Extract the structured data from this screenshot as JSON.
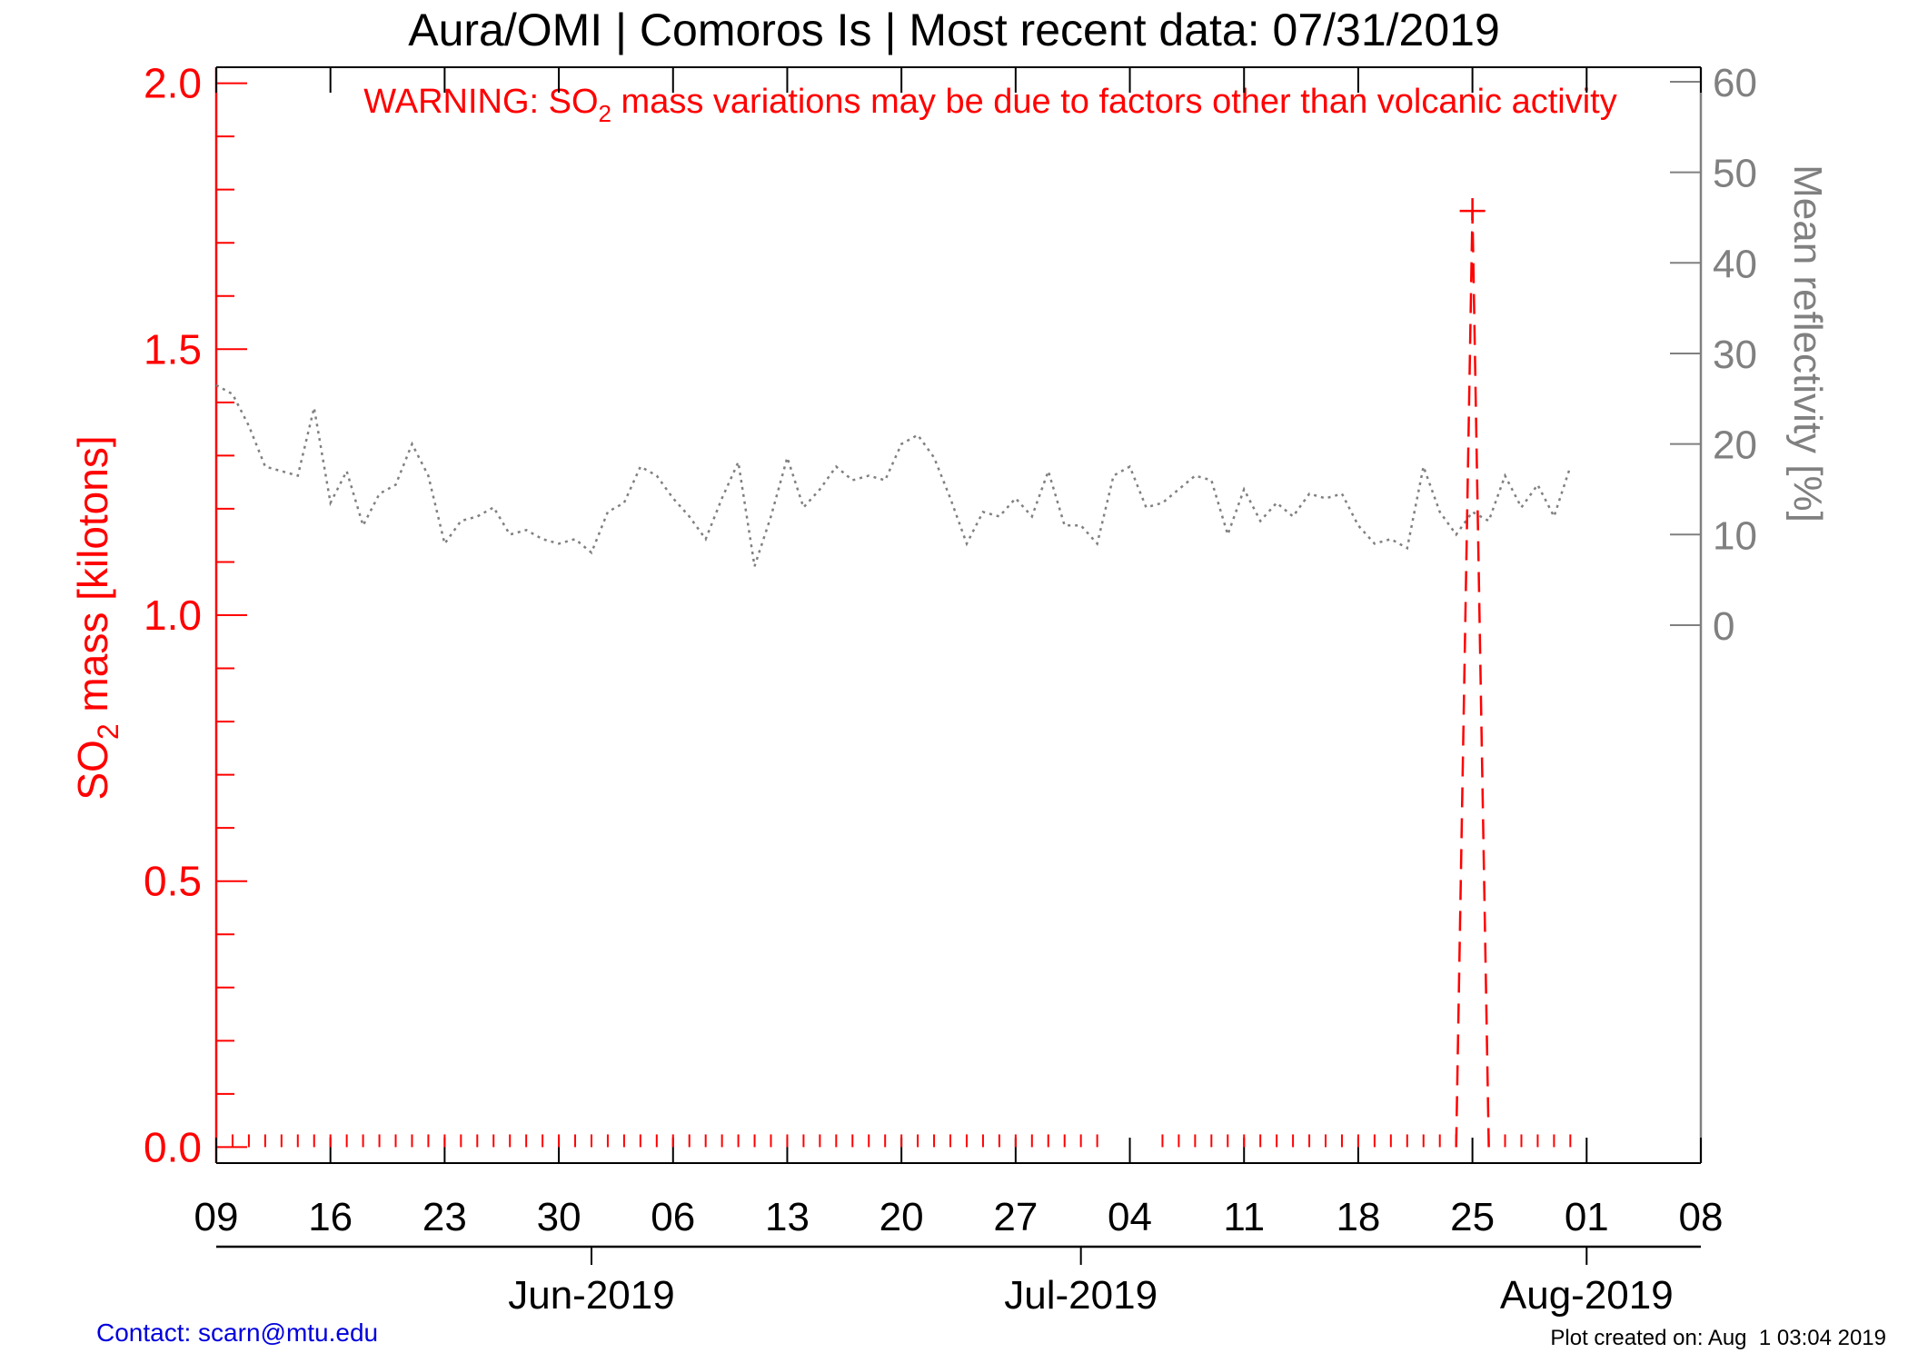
{
  "chart_data": {
    "type": "line",
    "title": "Aura/OMI | Comoros Is | Most recent data: 07/31/2019",
    "warning": {
      "prefix": "WARNING: SO",
      "subscript": "2",
      "suffix": " mass variations may be due to factors other than volcanic activity"
    },
    "left_axis": {
      "label_prefix": "SO",
      "label_subscript": "2",
      "label_suffix": " mass [kilotons]",
      "ylim": [
        -0.03,
        2.03
      ],
      "ticks": [
        "0.0",
        "0.5",
        "1.0",
        "1.5",
        "2.0"
      ],
      "tick_values": [
        0,
        0.5,
        1.0,
        1.5,
        2.0
      ],
      "color": "#ff0000"
    },
    "right_axis": {
      "label": "Mean reflectivity [%]",
      "ticks": [
        "0",
        "10",
        "20",
        "30",
        "40",
        "50",
        "60"
      ],
      "tick_values": [
        0,
        10,
        20,
        30,
        40,
        50,
        60
      ],
      "ylim": [
        -59.4,
        61.6
      ],
      "color": "#808080"
    },
    "x_axis": {
      "start": "2019-05-09",
      "end": "2019-08-08",
      "day_ticks": [
        {
          "date": "2019-05-09",
          "label": "09"
        },
        {
          "date": "2019-05-16",
          "label": "16"
        },
        {
          "date": "2019-05-23",
          "label": "23"
        },
        {
          "date": "2019-05-30",
          "label": "30"
        },
        {
          "date": "2019-06-06",
          "label": "06"
        },
        {
          "date": "2019-06-13",
          "label": "13"
        },
        {
          "date": "2019-06-20",
          "label": "20"
        },
        {
          "date": "2019-06-27",
          "label": "27"
        },
        {
          "date": "2019-07-04",
          "label": "04"
        },
        {
          "date": "2019-07-11",
          "label": "11"
        },
        {
          "date": "2019-07-18",
          "label": "18"
        },
        {
          "date": "2019-07-25",
          "label": "25"
        },
        {
          "date": "2019-08-01",
          "label": "01"
        },
        {
          "date": "2019-08-08",
          "label": "08"
        }
      ],
      "month_ticks": [
        {
          "date": "2019-06-01",
          "label": "Jun-2019"
        },
        {
          "date": "2019-07-01",
          "label": "Jul-2019"
        },
        {
          "date": "2019-08-01",
          "label": "Aug-2019"
        }
      ]
    },
    "series": [
      {
        "name": "SO2 mass",
        "axis": "left",
        "color": "#ff0000",
        "style": "dashed",
        "points": [
          {
            "date": "2019-07-24",
            "value": 0.0
          },
          {
            "date": "2019-07-25",
            "value": 1.76
          },
          {
            "date": "2019-07-26",
            "value": 0.0
          }
        ],
        "zero_marker_days": [
          "2019-05-10",
          "2019-05-11",
          "2019-05-12",
          "2019-05-13",
          "2019-05-14",
          "2019-05-15",
          "2019-05-16",
          "2019-05-17",
          "2019-05-18",
          "2019-05-19",
          "2019-05-20",
          "2019-05-21",
          "2019-05-22",
          "2019-05-23",
          "2019-05-24",
          "2019-05-25",
          "2019-05-26",
          "2019-05-27",
          "2019-05-28",
          "2019-05-29",
          "2019-05-30",
          "2019-05-31",
          "2019-06-01",
          "2019-06-02",
          "2019-06-03",
          "2019-06-04",
          "2019-06-05",
          "2019-06-06",
          "2019-06-07",
          "2019-06-08",
          "2019-06-09",
          "2019-06-10",
          "2019-06-11",
          "2019-06-12",
          "2019-06-13",
          "2019-06-14",
          "2019-06-15",
          "2019-06-16",
          "2019-06-17",
          "2019-06-18",
          "2019-06-19",
          "2019-06-20",
          "2019-06-21",
          "2019-06-22",
          "2019-06-23",
          "2019-06-24",
          "2019-06-25",
          "2019-06-26",
          "2019-06-27",
          "2019-06-28",
          "2019-06-29",
          "2019-06-30",
          "2019-07-01",
          "2019-07-02",
          "2019-07-06",
          "2019-07-07",
          "2019-07-08",
          "2019-07-09",
          "2019-07-10",
          "2019-07-11",
          "2019-07-12",
          "2019-07-13",
          "2019-07-14",
          "2019-07-15",
          "2019-07-16",
          "2019-07-17",
          "2019-07-18",
          "2019-07-19",
          "2019-07-20",
          "2019-07-21",
          "2019-07-22",
          "2019-07-23",
          "2019-07-24",
          "2019-07-26",
          "2019-07-27",
          "2019-07-28",
          "2019-07-29",
          "2019-07-30",
          "2019-07-31"
        ],
        "peak_marker": {
          "date": "2019-07-25",
          "value": 1.76
        }
      },
      {
        "name": "Mean reflectivity",
        "axis": "right",
        "color": "#808080",
        "style": "dotted",
        "points": [
          {
            "date": "2019-05-09",
            "value": 26.5
          },
          {
            "date": "2019-05-10",
            "value": 25.5
          },
          {
            "date": "2019-05-11",
            "value": 22.0
          },
          {
            "date": "2019-05-12",
            "value": 17.5
          },
          {
            "date": "2019-05-13",
            "value": 17.0
          },
          {
            "date": "2019-05-14",
            "value": 16.5
          },
          {
            "date": "2019-05-15",
            "value": 24.0
          },
          {
            "date": "2019-05-16",
            "value": 13.5
          },
          {
            "date": "2019-05-17",
            "value": 17.0
          },
          {
            "date": "2019-05-18",
            "value": 11.0
          },
          {
            "date": "2019-05-19",
            "value": 14.5
          },
          {
            "date": "2019-05-20",
            "value": 15.5
          },
          {
            "date": "2019-05-21",
            "value": 20.0
          },
          {
            "date": "2019-05-22",
            "value": 16.5
          },
          {
            "date": "2019-05-23",
            "value": 9.0
          },
          {
            "date": "2019-05-24",
            "value": 11.5
          },
          {
            "date": "2019-05-25",
            "value": 12.0
          },
          {
            "date": "2019-05-26",
            "value": 13.0
          },
          {
            "date": "2019-05-27",
            "value": 10.0
          },
          {
            "date": "2019-05-28",
            "value": 10.5
          },
          {
            "date": "2019-05-29",
            "value": 9.5
          },
          {
            "date": "2019-05-30",
            "value": 9.0
          },
          {
            "date": "2019-05-31",
            "value": 9.5
          },
          {
            "date": "2019-06-01",
            "value": 8.0
          },
          {
            "date": "2019-06-02",
            "value": 12.5
          },
          {
            "date": "2019-06-03",
            "value": 13.5
          },
          {
            "date": "2019-06-04",
            "value": 17.5
          },
          {
            "date": "2019-06-05",
            "value": 16.5
          },
          {
            "date": "2019-06-06",
            "value": 14.0
          },
          {
            "date": "2019-06-07",
            "value": 12.0
          },
          {
            "date": "2019-06-08",
            "value": 9.5
          },
          {
            "date": "2019-06-09",
            "value": 14.0
          },
          {
            "date": "2019-06-10",
            "value": 18.0
          },
          {
            "date": "2019-06-11",
            "value": 6.5
          },
          {
            "date": "2019-06-12",
            "value": 12.0
          },
          {
            "date": "2019-06-13",
            "value": 18.5
          },
          {
            "date": "2019-06-14",
            "value": 13.0
          },
          {
            "date": "2019-06-15",
            "value": 15.0
          },
          {
            "date": "2019-06-16",
            "value": 17.5
          },
          {
            "date": "2019-06-17",
            "value": 16.0
          },
          {
            "date": "2019-06-18",
            "value": 16.5
          },
          {
            "date": "2019-06-19",
            "value": 16.0
          },
          {
            "date": "2019-06-20",
            "value": 20.0
          },
          {
            "date": "2019-06-21",
            "value": 21.0
          },
          {
            "date": "2019-06-22",
            "value": 18.5
          },
          {
            "date": "2019-06-23",
            "value": 14.0
          },
          {
            "date": "2019-06-24",
            "value": 9.0
          },
          {
            "date": "2019-06-25",
            "value": 12.5
          },
          {
            "date": "2019-06-26",
            "value": 12.0
          },
          {
            "date": "2019-06-27",
            "value": 14.0
          },
          {
            "date": "2019-06-28",
            "value": 12.0
          },
          {
            "date": "2019-06-29",
            "value": 17.0
          },
          {
            "date": "2019-06-30",
            "value": 11.0
          },
          {
            "date": "2019-07-01",
            "value": 11.0
          },
          {
            "date": "2019-07-02",
            "value": 9.0
          },
          {
            "date": "2019-07-03",
            "value": 16.5
          },
          {
            "date": "2019-07-04",
            "value": 17.5
          },
          {
            "date": "2019-07-05",
            "value": 13.0
          },
          {
            "date": "2019-07-06",
            "value": 13.5
          },
          {
            "date": "2019-07-07",
            "value": 15.0
          },
          {
            "date": "2019-07-08",
            "value": 16.5
          },
          {
            "date": "2019-07-09",
            "value": 16.0
          },
          {
            "date": "2019-07-10",
            "value": 10.0
          },
          {
            "date": "2019-07-11",
            "value": 15.0
          },
          {
            "date": "2019-07-12",
            "value": 11.5
          },
          {
            "date": "2019-07-13",
            "value": 13.5
          },
          {
            "date": "2019-07-14",
            "value": 12.0
          },
          {
            "date": "2019-07-15",
            "value": 14.5
          },
          {
            "date": "2019-07-16",
            "value": 14.0
          },
          {
            "date": "2019-07-17",
            "value": 14.5
          },
          {
            "date": "2019-07-18",
            "value": 11.0
          },
          {
            "date": "2019-07-19",
            "value": 9.0
          },
          {
            "date": "2019-07-20",
            "value": 9.5
          },
          {
            "date": "2019-07-21",
            "value": 8.5
          },
          {
            "date": "2019-07-22",
            "value": 17.5
          },
          {
            "date": "2019-07-23",
            "value": 12.5
          },
          {
            "date": "2019-07-24",
            "value": 10.0
          },
          {
            "date": "2019-07-25",
            "value": 12.5
          },
          {
            "date": "2019-07-26",
            "value": 11.5
          },
          {
            "date": "2019-07-27",
            "value": 16.5
          },
          {
            "date": "2019-07-28",
            "value": 13.0
          },
          {
            "date": "2019-07-29",
            "value": 15.5
          },
          {
            "date": "2019-07-30",
            "value": 12.0
          },
          {
            "date": "2019-07-31",
            "value": 17.5
          }
        ]
      }
    ],
    "grid": false,
    "legend": "none"
  },
  "footer": {
    "contact": "Contact: scarn@mtu.edu",
    "created": "Plot created on: Aug  1 03:04 2019"
  }
}
